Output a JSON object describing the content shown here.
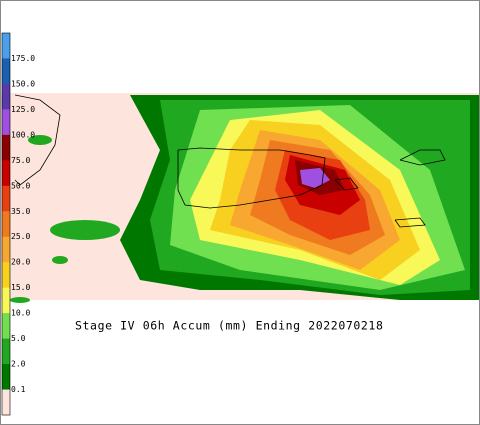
{
  "caption": "Stage IV 06h Accum (mm) Ending 2022070218",
  "colorbar": {
    "labels": [
      "175.0",
      "150.0",
      "125.0",
      "100.0",
      "75.0",
      "50.0",
      "35.0",
      "25.0",
      "20.0",
      "15.0",
      "10.0",
      "5.0",
      "2.0",
      "0.1"
    ],
    "colors": [
      "#4aa0e8",
      "#1a5fb0",
      "#5a3aa8",
      "#a050e0",
      "#8a0000",
      "#c80000",
      "#e84010",
      "#f07a20",
      "#f8a830",
      "#f8d020",
      "#f8f858",
      "#70e050",
      "#20a820",
      "#007800",
      "#fde4dc"
    ]
  }
}
